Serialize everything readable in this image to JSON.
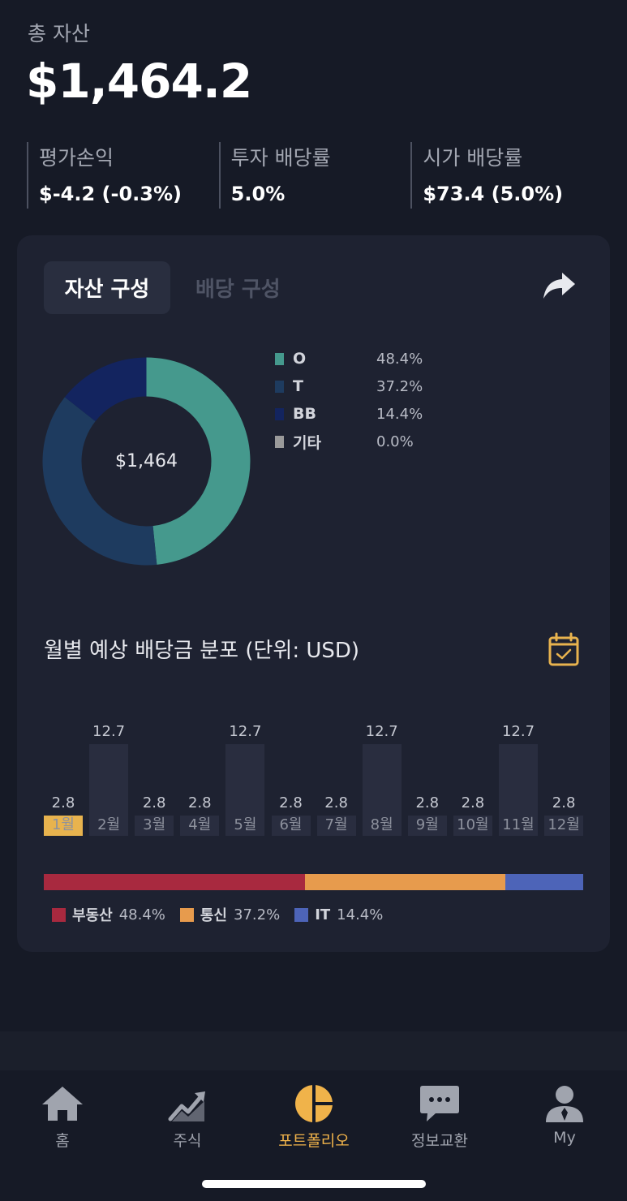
{
  "header": {
    "total_label": "총 자산",
    "total_value": "$1,464.2",
    "stats": [
      {
        "label": "평가손익",
        "value": "$-4.2 (-0.3%)"
      },
      {
        "label": "투자 배당률",
        "value": "5.0%"
      },
      {
        "label": "시가 배당률",
        "value": "$73.4 (5.0%)"
      }
    ]
  },
  "card": {
    "tabs": {
      "active": "자산 구성",
      "inactive": "배당 구성"
    },
    "share_icon": "share-arrow-icon",
    "donut_center": "$1,464",
    "holdings": [
      {
        "name": "O",
        "pct": "48.4%",
        "value": 48.4,
        "color": "#45998d"
      },
      {
        "name": "T",
        "pct": "37.2%",
        "value": 37.2,
        "color": "#1e3b5f"
      },
      {
        "name": "BB",
        "pct": "14.4%",
        "value": 14.4,
        "color": "#13245f"
      },
      {
        "name": "기타",
        "pct": "0.0%",
        "value": 0.0,
        "color": "#9a9a9a"
      }
    ],
    "monthly_title": "월별 예상 배당금 분포 (단위: USD)",
    "calendar_icon": "calendar-check-icon",
    "sectors": [
      {
        "name": "부동산",
        "pct": "48.4%",
        "value": 48.4,
        "color": "#a8293f"
      },
      {
        "name": "통신",
        "pct": "37.2%",
        "value": 37.2,
        "color": "#e79b4d"
      },
      {
        "name": "IT",
        "pct": "14.4%",
        "value": 14.4,
        "color": "#4d64b8"
      }
    ]
  },
  "chart_data": {
    "type": "bar",
    "categories": [
      "1월",
      "2월",
      "3월",
      "4월",
      "5월",
      "6월",
      "7월",
      "8월",
      "9월",
      "10월",
      "11월",
      "12월"
    ],
    "values": [
      2.8,
      12.7,
      2.8,
      2.8,
      12.7,
      2.8,
      2.8,
      12.7,
      2.8,
      2.8,
      12.7,
      2.8
    ],
    "value_labels": [
      "2.8",
      "12.7",
      "2.8",
      "2.8",
      "12.7",
      "2.8",
      "2.8",
      "12.7",
      "2.8",
      "2.8",
      "12.7",
      "2.8"
    ],
    "highlight_index": 0,
    "highlight_color": "#e8b34e",
    "bar_color": "#292d3f",
    "title": "월별 예상 배당금 분포 (단위: USD)",
    "ylim": [
      0,
      12.7
    ]
  },
  "nav": {
    "items": [
      {
        "label": "홈",
        "icon": "home-icon",
        "active": false
      },
      {
        "label": "주식",
        "icon": "stock-chart-icon",
        "active": false
      },
      {
        "label": "포트폴리오",
        "icon": "pie-chart-icon",
        "active": true
      },
      {
        "label": "정보교환",
        "icon": "chat-bubble-icon",
        "active": false
      },
      {
        "label": "My",
        "icon": "user-icon",
        "active": false
      }
    ]
  }
}
